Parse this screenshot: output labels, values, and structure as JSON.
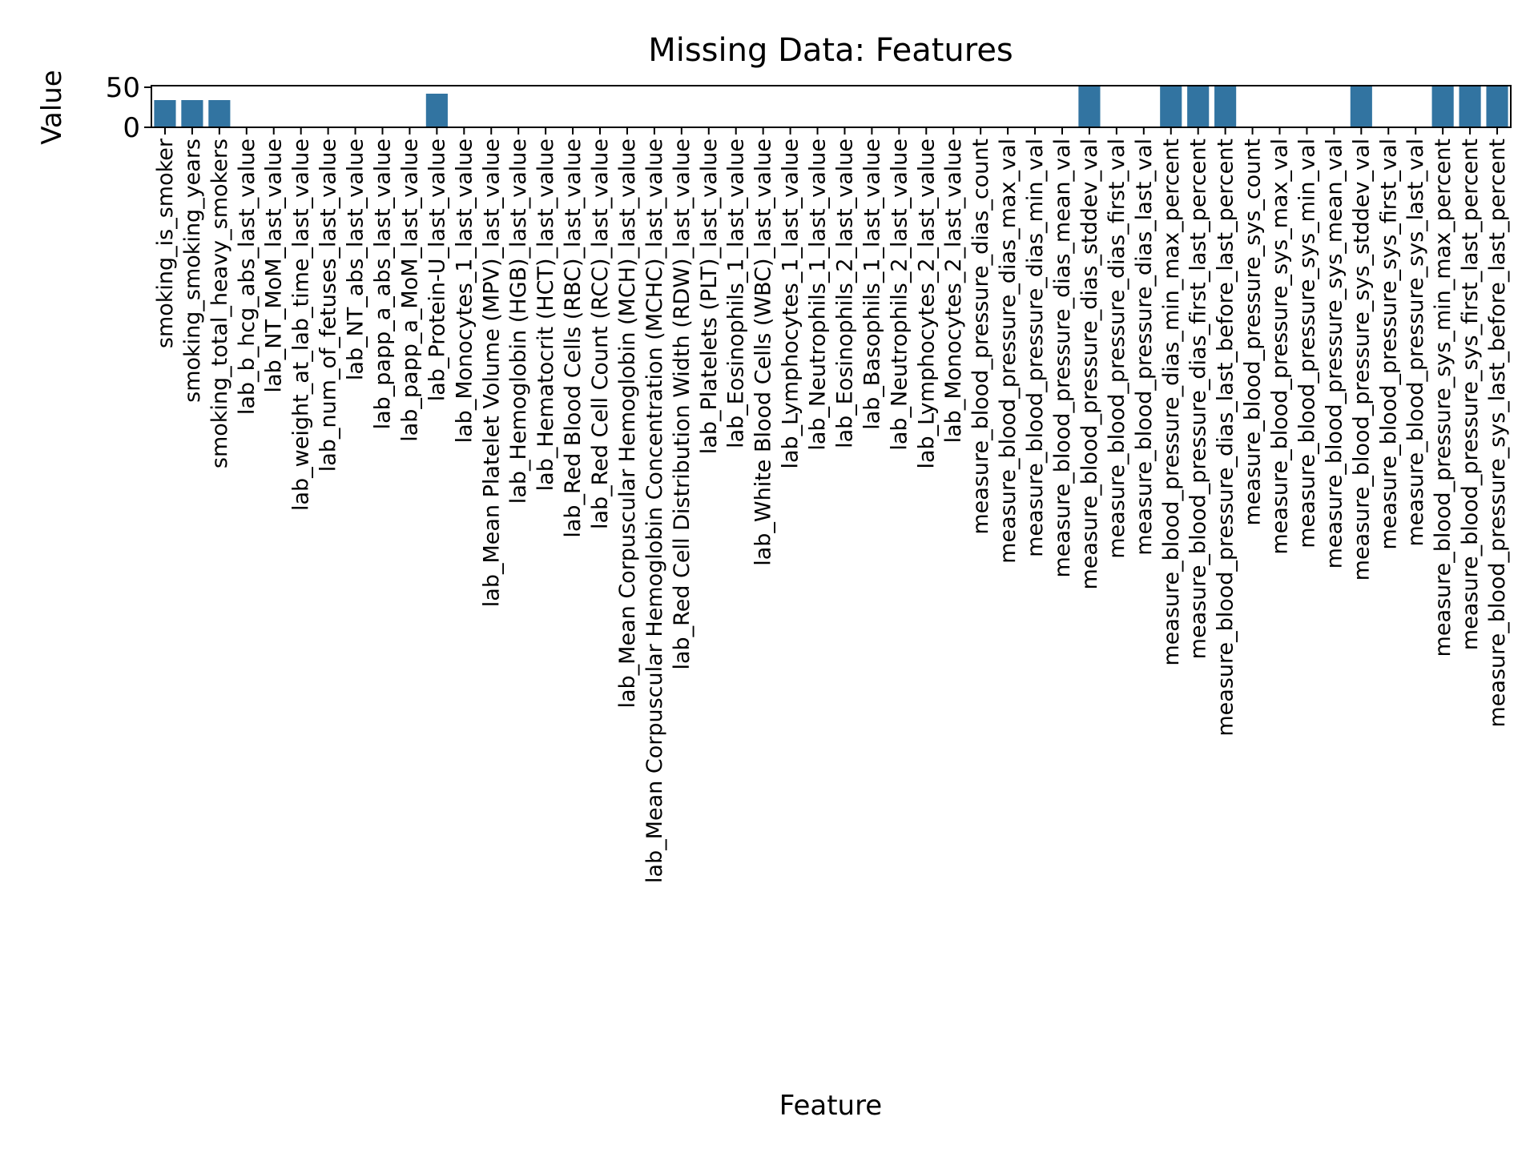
{
  "chart_data": {
    "type": "bar",
    "title": "Missing Data: Features",
    "xlabel": "Feature",
    "ylabel": "Value",
    "ylim": [
      0,
      52
    ],
    "yticks": [
      0,
      50
    ],
    "grid": false,
    "bar_color": "#3274a1",
    "categories": [
      "smoking_is_smoker",
      "smoking_smoking_years",
      "smoking_total_heavy_smokers",
      "lab_b_hcg_abs_last_value",
      "lab_NT_MoM_last_value",
      "lab_weight_at_lab_time_last_value",
      "lab_num_of_fetuses_last_value",
      "lab_NT_abs_last_value",
      "lab_papp_a_abs_last_value",
      "lab_papp_a_MoM_last_value",
      "lab_Protein-U_last_value",
      "lab_Monocytes_1_last_value",
      "lab_Mean Platelet Volume (MPV)_last_value",
      "lab_Hemoglobin (HGB)_last_value",
      "lab_Hematocrit (HCT)_last_value",
      "lab_Red Blood Cells (RBC)_last_value",
      "lab_Red Cell Count (RCC)_last_value",
      "lab_Mean Corpuscular Hemoglobin (MCH)_last_value",
      "lab_Mean Corpuscular Hemoglobin Concentration (MCHC)_last_value",
      "lab_Red Cell Distribution Width (RDW)_last_value",
      "lab_Platelets (PLT)_last_value",
      "lab_Eosinophils_1_last_value",
      "lab_White Blood Cells (WBC)_last_value",
      "lab_Lymphocytes_1_last_value",
      "lab_Neutrophils_1_last_value",
      "lab_Eosinophils_2_last_value",
      "lab_Basophils_1_last_value",
      "lab_Neutrophils_2_last_value",
      "lab_Lymphocytes_2_last_value",
      "lab_Monocytes_2_last_value",
      "measure_blood_pressure_dias_count",
      "measure_blood_pressure_dias_max_val",
      "measure_blood_pressure_dias_min_val",
      "measure_blood_pressure_dias_mean_val",
      "measure_blood_pressure_dias_stddev_val",
      "measure_blood_pressure_dias_first_val",
      "measure_blood_pressure_dias_last_val",
      "measure_blood_pressure_dias_min_max_percent",
      "measure_blood_pressure_dias_first_last_percent",
      "measure_blood_pressure_dias_last_before_last_percent",
      "measure_blood_pressure_sys_count",
      "measure_blood_pressure_sys_max_val",
      "measure_blood_pressure_sys_min_val",
      "measure_blood_pressure_sys_mean_val",
      "measure_blood_pressure_sys_stddev_val",
      "measure_blood_pressure_sys_first_val",
      "measure_blood_pressure_sys_last_val",
      "measure_blood_pressure_sys_min_max_percent",
      "measure_blood_pressure_sys_first_last_percent",
      "measure_blood_pressure_sys_last_before_last_percent"
    ],
    "values": [
      34,
      34,
      34,
      0,
      0,
      0,
      0,
      0,
      0,
      0,
      42,
      0,
      0,
      0,
      0,
      0,
      0,
      0,
      0,
      0,
      0,
      0,
      0,
      0,
      0,
      0,
      0,
      0,
      0,
      0,
      0,
      0,
      0,
      0,
      52,
      0,
      0,
      52,
      52,
      52,
      0,
      0,
      0,
      0,
      52,
      0,
      0,
      52,
      52,
      52
    ]
  }
}
